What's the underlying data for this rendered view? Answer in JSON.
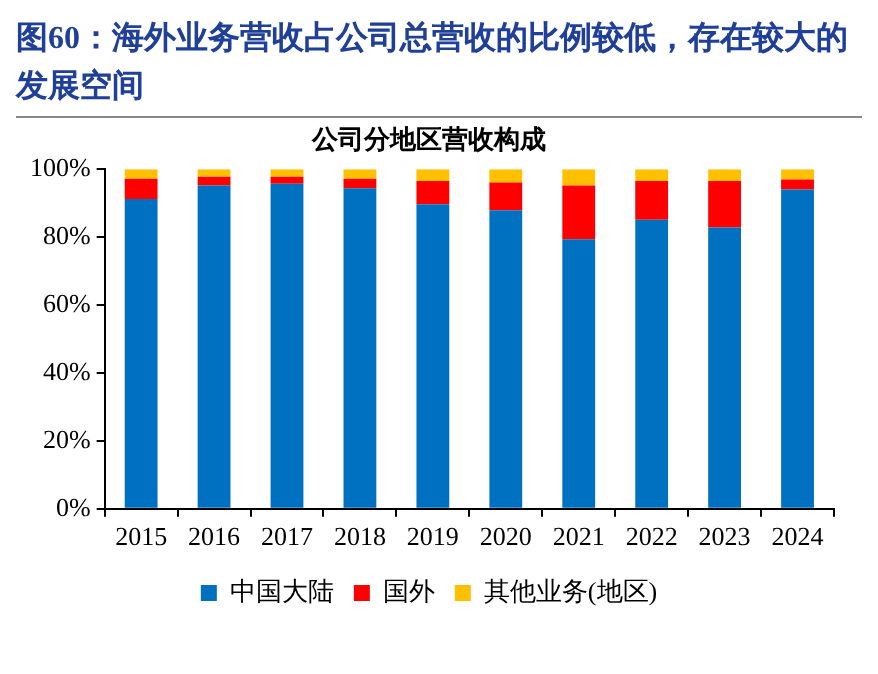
{
  "chart_data": {
    "type": "bar",
    "title": "图60：海外业务营收占公司总营收的比例较低，存在较大的发展空间",
    "subtitle": "公司分地区营收构成",
    "categories": [
      "2015",
      "2016",
      "2017",
      "2018",
      "2019",
      "2020",
      "2021",
      "2022",
      "2023",
      "2024"
    ],
    "series": [
      {
        "name": "中国大陆",
        "color": "#0070c0",
        "values": [
          91.2,
          95.2,
          95.7,
          94.4,
          89.7,
          87.9,
          79.4,
          85.1,
          82.8,
          94
        ]
      },
      {
        "name": "国外",
        "color": "#ff0000",
        "values": [
          6.0,
          2.6,
          2.1,
          2.8,
          6.8,
          8.2,
          15.8,
          11.4,
          13.7,
          3
        ]
      },
      {
        "name": "其他业务(地区)",
        "color": "#ffc000",
        "values": [
          2.8,
          2.2,
          2.2,
          2.8,
          3.5,
          3.9,
          4.8,
          3.5,
          3.5,
          3
        ]
      }
    ],
    "stacked": true,
    "ylim": [
      0,
      100
    ],
    "yticks": [
      {
        "value": 0,
        "label": "0%"
      },
      {
        "value": 20,
        "label": "20%"
      },
      {
        "value": 40,
        "label": "40%"
      },
      {
        "value": 60,
        "label": "60%"
      },
      {
        "value": 80,
        "label": "80%"
      },
      {
        "value": 100,
        "label": "100%"
      }
    ],
    "grid": false,
    "legend": "bottom"
  }
}
